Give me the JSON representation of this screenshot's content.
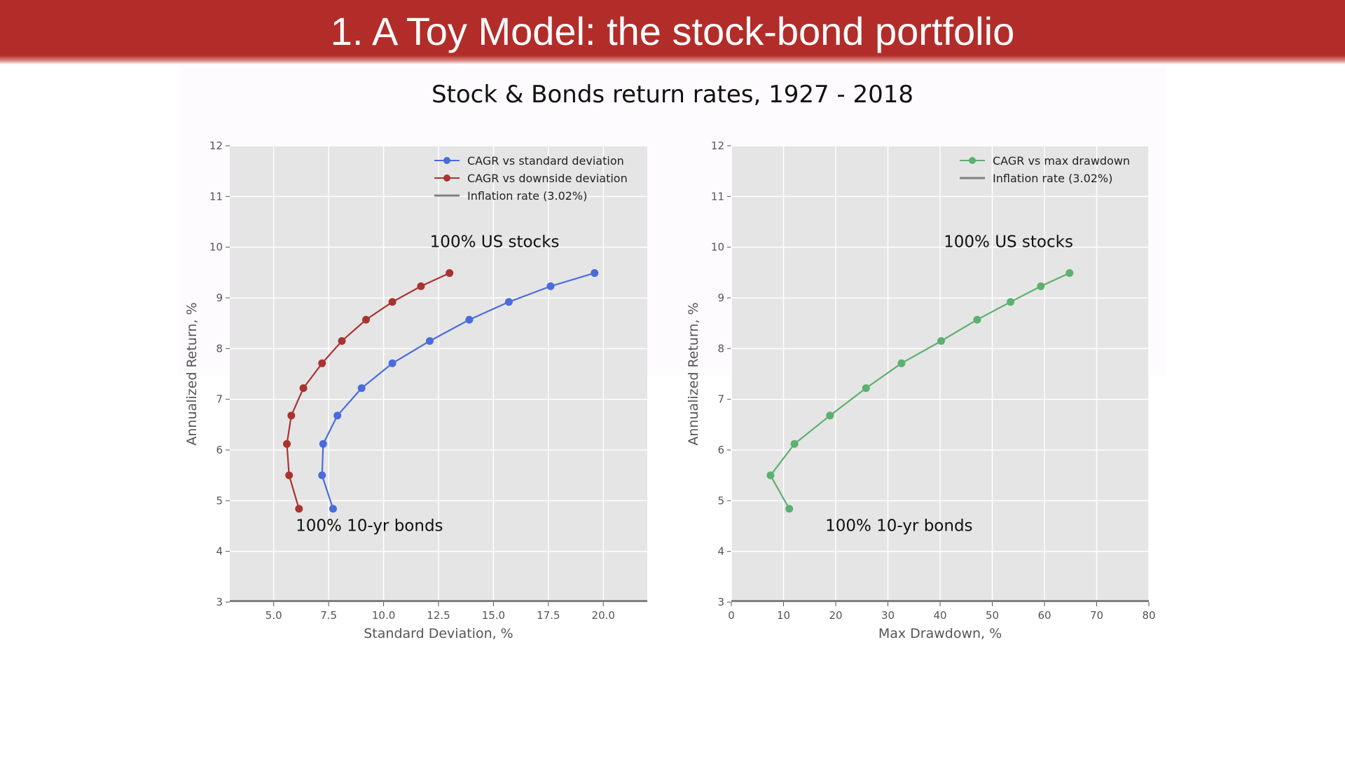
{
  "slide": {
    "title": "1. A Toy Model: the stock-bond portfolio",
    "figure_title": "Stock & Bonds return rates, 1927 - 2018",
    "title_bar_color": "#b22d2a"
  },
  "chart_data": [
    {
      "type": "line",
      "xlabel": "Standard Deviation, %",
      "ylabel": "Annualized Return, %",
      "xlim": [
        3.0,
        22.0
      ],
      "ylim": [
        3,
        12
      ],
      "xticks": [
        "5.0",
        "7.5",
        "10.0",
        "12.5",
        "15.0",
        "17.5",
        "20.0"
      ],
      "yticks": [
        "3",
        "4",
        "5",
        "6",
        "7",
        "8",
        "9",
        "10",
        "11",
        "12"
      ],
      "grid": true,
      "legend_position": "top-right",
      "series": [
        {
          "name": "CAGR vs standard deviation",
          "color": "#4a6bdc",
          "points": [
            {
              "x": 7.7,
              "y": 4.84
            },
            {
              "x": 7.2,
              "y": 5.5
            },
            {
              "x": 7.25,
              "y": 6.12
            },
            {
              "x": 7.9,
              "y": 6.68
            },
            {
              "x": 9.0,
              "y": 7.22
            },
            {
              "x": 10.4,
              "y": 7.71
            },
            {
              "x": 12.1,
              "y": 8.15
            },
            {
              "x": 13.9,
              "y": 8.57
            },
            {
              "x": 15.7,
              "y": 8.92
            },
            {
              "x": 17.6,
              "y": 9.23
            },
            {
              "x": 19.6,
              "y": 9.49
            }
          ]
        },
        {
          "name": "CAGR vs downside deviation",
          "color": "#a93330",
          "points": [
            {
              "x": 6.15,
              "y": 4.84
            },
            {
              "x": 5.7,
              "y": 5.5
            },
            {
              "x": 5.6,
              "y": 6.12
            },
            {
              "x": 5.8,
              "y": 6.68
            },
            {
              "x": 6.35,
              "y": 7.22
            },
            {
              "x": 7.2,
              "y": 7.71
            },
            {
              "x": 8.1,
              "y": 8.15
            },
            {
              "x": 9.2,
              "y": 8.57
            },
            {
              "x": 10.4,
              "y": 8.92
            },
            {
              "x": 11.7,
              "y": 9.23
            },
            {
              "x": 13.0,
              "y": 9.49
            }
          ]
        },
        {
          "name": "Inflation rate (3.02%)",
          "color": "#7f7f7f",
          "horizontal_line": 3.02
        }
      ],
      "annotations": [
        {
          "text": "100% US stocks",
          "x": 18.0,
          "y": 10.0
        },
        {
          "text": "100% 10-yr bonds",
          "x": 6.0,
          "y": 4.4
        }
      ]
    },
    {
      "type": "line",
      "xlabel": "Max Drawdown, %",
      "ylabel": "Annualized Return, %",
      "xlim": [
        0,
        80
      ],
      "ylim": [
        3,
        12
      ],
      "xticks": [
        "0",
        "10",
        "20",
        "30",
        "40",
        "50",
        "60",
        "70",
        "80"
      ],
      "yticks": [
        "3",
        "4",
        "5",
        "6",
        "7",
        "8",
        "9",
        "10",
        "11",
        "12"
      ],
      "grid": true,
      "legend_position": "top-right",
      "series": [
        {
          "name": "CAGR vs max drawdown",
          "color": "#5cb070",
          "points": [
            {
              "x": 11.1,
              "y": 4.84
            },
            {
              "x": 7.5,
              "y": 5.5
            },
            {
              "x": 12.1,
              "y": 6.12
            },
            {
              "x": 18.9,
              "y": 6.68
            },
            {
              "x": 25.8,
              "y": 7.22
            },
            {
              "x": 32.6,
              "y": 7.71
            },
            {
              "x": 40.2,
              "y": 8.15
            },
            {
              "x": 47.1,
              "y": 8.57
            },
            {
              "x": 53.5,
              "y": 8.92
            },
            {
              "x": 59.3,
              "y": 9.23
            },
            {
              "x": 64.8,
              "y": 9.49
            }
          ]
        },
        {
          "name": "Inflation rate (3.02%)",
          "color": "#7f7f7f",
          "horizontal_line": 3.02
        }
      ],
      "annotations": [
        {
          "text": "100% US stocks",
          "x": 65.5,
          "y": 10.0
        },
        {
          "text": "100% 10-yr bonds",
          "x": 18.0,
          "y": 4.4
        }
      ]
    }
  ]
}
